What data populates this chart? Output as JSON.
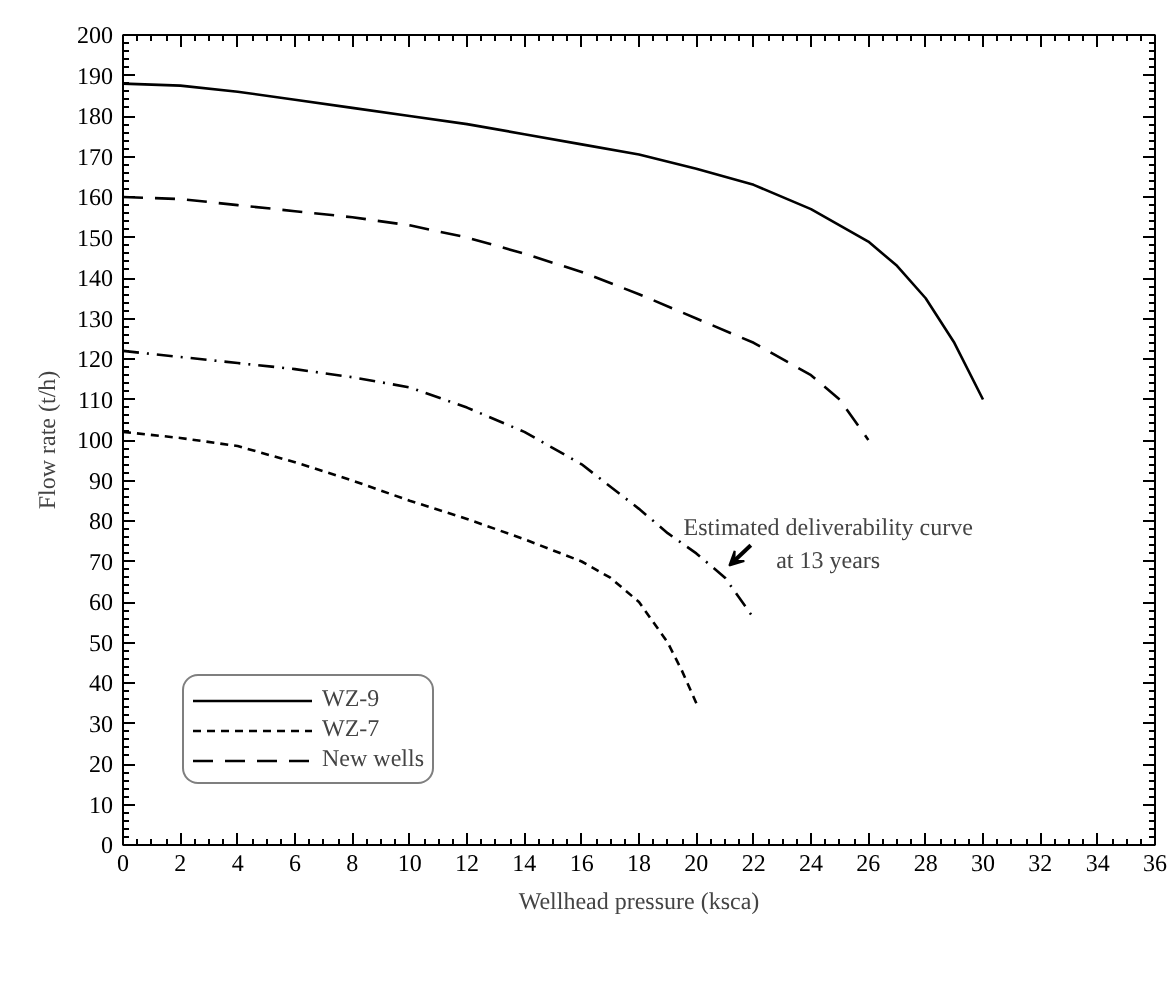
{
  "chart_data": {
    "type": "line",
    "xlabel": "Wellhead pressure (ksca)",
    "ylabel": "Flow rate (t/h)",
    "xlim": [
      0,
      36
    ],
    "xticks": [
      0,
      2,
      4,
      6,
      8,
      10,
      12,
      14,
      16,
      18,
      20,
      22,
      24,
      26,
      28,
      30,
      32,
      34,
      36
    ],
    "ylim": [
      0,
      200
    ],
    "yticks": [
      0,
      10,
      20,
      30,
      40,
      50,
      60,
      70,
      80,
      90,
      100,
      110,
      120,
      130,
      140,
      150,
      160,
      170,
      180,
      190,
      200
    ],
    "grid": false,
    "legend": "bottom left",
    "marker": "none",
    "series": [
      {
        "name": "WZ-9",
        "color": "#000000",
        "line_style": "solid",
        "x": [
          0,
          2,
          4,
          6,
          8,
          10,
          12,
          14,
          16,
          18,
          20,
          22,
          24,
          26,
          27,
          28,
          29,
          30
        ],
        "values": [
          188,
          187.5,
          186,
          184,
          182,
          180,
          178,
          175.5,
          173,
          170.5,
          167,
          163,
          157,
          149,
          143,
          135,
          124,
          110
        ]
      },
      {
        "name": "WZ-7",
        "color": "#000000",
        "line_style": "dashed",
        "x": [
          0,
          2,
          4,
          6,
          8,
          10,
          12,
          14,
          16,
          17,
          18,
          19,
          19.5,
          20
        ],
        "values": [
          102,
          100.5,
          98.5,
          94.5,
          90,
          85,
          80.5,
          75.5,
          70,
          66,
          60,
          50,
          43,
          35
        ]
      },
      {
        "name": "New wells",
        "color": "#000000",
        "line_style": "longdash",
        "x": [
          0,
          2,
          4,
          6,
          8,
          10,
          12,
          14,
          16,
          18,
          20,
          22,
          24,
          25,
          26
        ],
        "values": [
          160,
          159.5,
          158,
          156.5,
          155,
          153,
          150,
          146,
          141.5,
          136,
          130,
          124,
          116,
          110,
          100
        ]
      },
      {
        "color": "#000000",
        "line_style": "dashdot",
        "x": [
          0,
          2,
          4,
          6,
          8,
          10,
          12,
          14,
          16,
          18,
          19,
          20,
          21,
          22
        ],
        "values": [
          122,
          120.5,
          119,
          117.5,
          115.5,
          113,
          108,
          102,
          94,
          83,
          77,
          72,
          66,
          56
        ]
      }
    ],
    "annotations": [
      {
        "text": "Estimated deliverability curve\nat 13 years",
        "x": 21,
        "y": 68
      }
    ]
  }
}
